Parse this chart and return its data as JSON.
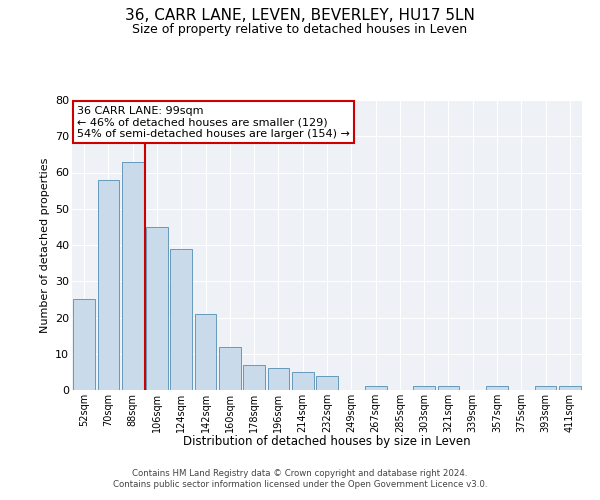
{
  "title": "36, CARR LANE, LEVEN, BEVERLEY, HU17 5LN",
  "subtitle": "Size of property relative to detached houses in Leven",
  "xlabel": "Distribution of detached houses by size in Leven",
  "ylabel": "Number of detached properties",
  "categories": [
    "52sqm",
    "70sqm",
    "88sqm",
    "106sqm",
    "124sqm",
    "142sqm",
    "160sqm",
    "178sqm",
    "196sqm",
    "214sqm",
    "232sqm",
    "249sqm",
    "267sqm",
    "285sqm",
    "303sqm",
    "321sqm",
    "339sqm",
    "357sqm",
    "375sqm",
    "393sqm",
    "411sqm"
  ],
  "values": [
    25,
    58,
    63,
    45,
    39,
    21,
    12,
    7,
    6,
    5,
    4,
    0,
    1,
    0,
    1,
    1,
    0,
    1,
    0,
    1,
    1
  ],
  "bar_color": "#c9daea",
  "bar_edge_color": "#6699bb",
  "vline_x_index": 3,
  "vline_color": "#cc0000",
  "annotation_text": "36 CARR LANE: 99sqm\n← 46% of detached houses are smaller (129)\n54% of semi-detached houses are larger (154) →",
  "annotation_box_color": "#ffffff",
  "annotation_box_edge": "#cc0000",
  "ylim": [
    0,
    80
  ],
  "yticks": [
    0,
    10,
    20,
    30,
    40,
    50,
    60,
    70,
    80
  ],
  "background_color": "#eef2f7",
  "footer_line1": "Contains HM Land Registry data © Crown copyright and database right 2024.",
  "footer_line2": "Contains public sector information licensed under the Open Government Licence v3.0."
}
